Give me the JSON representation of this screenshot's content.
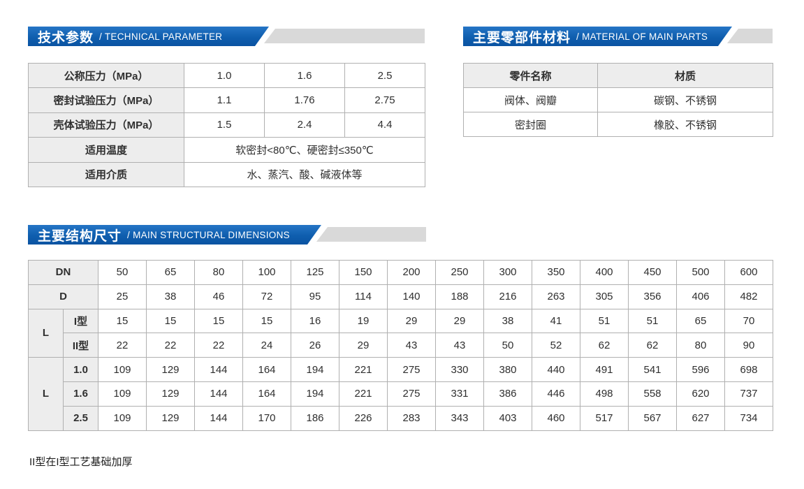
{
  "colors": {
    "banner_blue": "#0f5eae",
    "banner_gray": "#d9d9d9",
    "table_border": "#b0b0b0",
    "header_cell_bg": "#ededed",
    "text": "#2f2f2f"
  },
  "technical": {
    "title_zh": "技术参数",
    "title_en": "/ TECHNICAL PARAMETER",
    "table": {
      "rows": [
        {
          "label": "公称压力（MPa）",
          "values": [
            "1.0",
            "1.6",
            "2.5"
          ]
        },
        {
          "label": "密封试验压力（MPa）",
          "values": [
            "1.1",
            "1.76",
            "2.75"
          ]
        },
        {
          "label": "壳体试验压力（MPa）",
          "values": [
            "1.5",
            "2.4",
            "4.4"
          ]
        }
      ],
      "span_rows": [
        {
          "label": "适用温度",
          "value": "软密封<80℃、硬密封≤350℃"
        },
        {
          "label": "适用介质",
          "value": "水、蒸汽、酸、碱液体等"
        }
      ]
    }
  },
  "materials": {
    "title_zh": "主要零部件材料",
    "title_en": "/ MATERIAL OF MAIN PARTS",
    "table": {
      "headers": [
        "零件名称",
        "材质"
      ],
      "rows": [
        [
          "阀体、阀瓣",
          "碳钢、不锈钢"
        ],
        [
          "密封圈",
          "橡胶、不锈钢"
        ]
      ]
    }
  },
  "dimensions": {
    "title_zh": "主要结构尺寸",
    "title_en": "/ MAIN STRUCTURAL DIMENSIONS",
    "table": {
      "dn_label": "DN",
      "dn": [
        "50",
        "65",
        "80",
        "100",
        "125",
        "150",
        "200",
        "250",
        "300",
        "350",
        "400",
        "450",
        "500",
        "600"
      ],
      "d_label": "D",
      "d": [
        "25",
        "38",
        "46",
        "72",
        "95",
        "114",
        "140",
        "188",
        "216",
        "263",
        "305",
        "356",
        "406",
        "482"
      ],
      "l1_label": "L",
      "l1_rows": [
        {
          "sub": "I型",
          "values": [
            "15",
            "15",
            "15",
            "15",
            "16",
            "19",
            "29",
            "29",
            "38",
            "41",
            "51",
            "51",
            "65",
            "70"
          ]
        },
        {
          "sub": "II型",
          "values": [
            "22",
            "22",
            "22",
            "24",
            "26",
            "29",
            "43",
            "43",
            "50",
            "52",
            "62",
            "62",
            "80",
            "90"
          ]
        }
      ],
      "l2_label": "L",
      "l2_rows": [
        {
          "sub": "1.0",
          "values": [
            "109",
            "129",
            "144",
            "164",
            "194",
            "221",
            "275",
            "330",
            "380",
            "440",
            "491",
            "541",
            "596",
            "698"
          ]
        },
        {
          "sub": "1.6",
          "values": [
            "109",
            "129",
            "144",
            "164",
            "194",
            "221",
            "275",
            "331",
            "386",
            "446",
            "498",
            "558",
            "620",
            "737"
          ]
        },
        {
          "sub": "2.5",
          "values": [
            "109",
            "129",
            "144",
            "170",
            "186",
            "226",
            "283",
            "343",
            "403",
            "460",
            "517",
            "567",
            "627",
            "734"
          ]
        }
      ]
    },
    "footnote": "II型在I型工艺基础加厚"
  }
}
